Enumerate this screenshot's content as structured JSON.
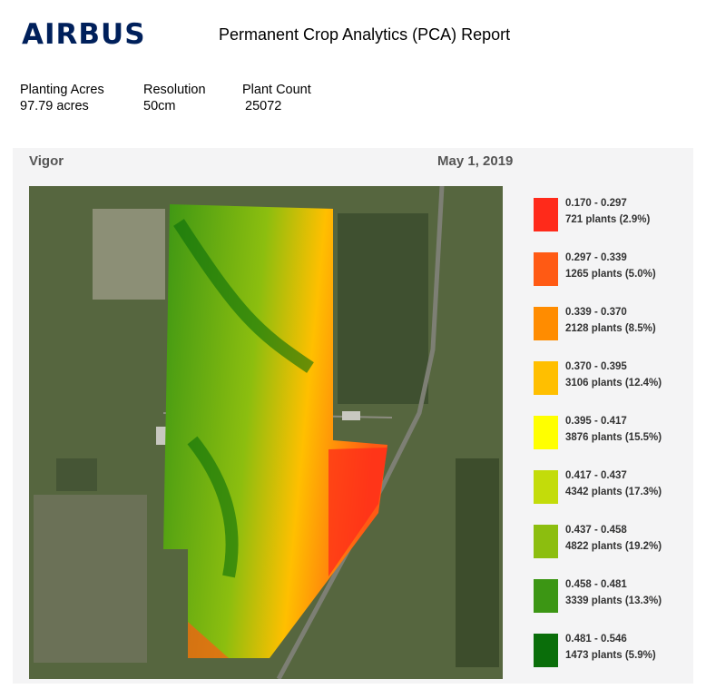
{
  "header": {
    "logo": "AIRBUS",
    "title": "Permanent Crop Analytics (PCA) Report"
  },
  "summary": [
    {
      "label": "Planting Acres",
      "value": "97.79 acres"
    },
    {
      "label": "Resolution",
      "value": "50cm"
    },
    {
      "label": "Plant Count",
      "value": "25072"
    }
  ],
  "panel": {
    "metric": "Vigor",
    "date": "May 1, 2019"
  },
  "legend": [
    {
      "range": "0.170 - 0.297",
      "count": "721 plants (2.9%)",
      "color": "#ff2a1a"
    },
    {
      "range": "0.297 - 0.339",
      "count": "1265 plants (5.0%)",
      "color": "#ff5a14"
    },
    {
      "range": "0.339 - 0.370",
      "count": "2128 plants (8.5%)",
      "color": "#ff8c00"
    },
    {
      "range": "0.370 - 0.395",
      "count": "3106 plants (12.4%)",
      "color": "#ffbf00"
    },
    {
      "range": "0.395 - 0.417",
      "count": "3876 plants (15.5%)",
      "color": "#ffff00"
    },
    {
      "range": "0.417 - 0.437",
      "count": "4342 plants (17.3%)",
      "color": "#c3dc0a"
    },
    {
      "range": "0.437 - 0.458",
      "count": "4822 plants (19.2%)",
      "color": "#8cbe0f"
    },
    {
      "range": "0.458 - 0.481",
      "count": "3339 plants (13.3%)",
      "color": "#3c9614"
    },
    {
      "range": "0.481 - 0.546",
      "count": "1473 plants (5.9%)",
      "color": "#0a6e0a"
    }
  ]
}
